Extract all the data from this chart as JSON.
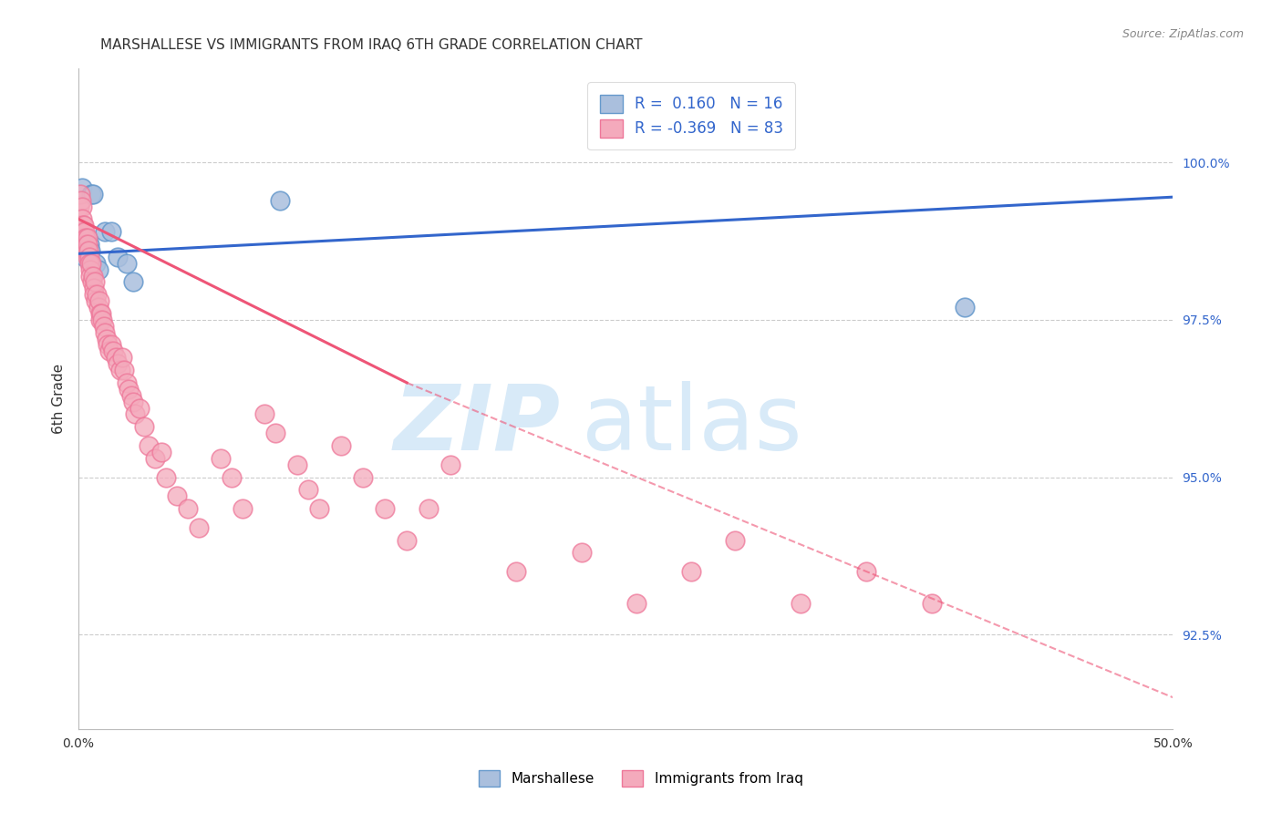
{
  "title": "MARSHALLESE VS IMMIGRANTS FROM IRAQ 6TH GRADE CORRELATION CHART",
  "source": "Source: ZipAtlas.com",
  "ylabel": "6th Grade",
  "xlim": [
    0.0,
    50.0
  ],
  "ylim": [
    91.0,
    101.5
  ],
  "y_ticks": [
    92.5,
    95.0,
    97.5,
    100.0
  ],
  "y_tick_labels": [
    "92.5%",
    "95.0%",
    "97.5%",
    "100.0%"
  ],
  "blue_R": 0.16,
  "blue_N": 16,
  "pink_R": -0.369,
  "pink_N": 83,
  "blue_color": "#AABFDD",
  "pink_color": "#F4AABC",
  "blue_edge": "#6699CC",
  "pink_edge": "#EE7799",
  "trend_blue_color": "#3366CC",
  "trend_pink_color": "#EE5577",
  "legend_label_blue": "Marshallese",
  "legend_label_pink": "Immigrants from Iraq",
  "blue_line_x0": 0.0,
  "blue_line_y0": 98.55,
  "blue_line_x1": 50.0,
  "blue_line_y1": 99.45,
  "pink_solid_x0": 0.0,
  "pink_solid_y0": 99.1,
  "pink_solid_x1": 15.0,
  "pink_solid_y1": 96.5,
  "pink_dash_x1": 50.0,
  "pink_dash_y1": 91.5,
  "blue_scatter_x": [
    0.15,
    0.25,
    0.3,
    0.5,
    0.55,
    0.6,
    0.65,
    0.8,
    0.9,
    1.2,
    1.5,
    1.8,
    2.2,
    2.5,
    9.2,
    40.5
  ],
  "blue_scatter_y": [
    99.6,
    98.8,
    98.5,
    98.7,
    98.6,
    99.5,
    99.5,
    98.4,
    98.3,
    98.9,
    98.9,
    98.5,
    98.4,
    98.1,
    99.4,
    97.7
  ],
  "pink_scatter_x": [
    0.05,
    0.1,
    0.12,
    0.15,
    0.18,
    0.2,
    0.22,
    0.25,
    0.28,
    0.3,
    0.32,
    0.35,
    0.38,
    0.4,
    0.4,
    0.42,
    0.45,
    0.48,
    0.5,
    0.52,
    0.55,
    0.6,
    0.62,
    0.65,
    0.7,
    0.72,
    0.75,
    0.8,
    0.85,
    0.9,
    0.95,
    1.0,
    1.0,
    1.05,
    1.1,
    1.15,
    1.2,
    1.3,
    1.35,
    1.4,
    1.5,
    1.6,
    1.7,
    1.8,
    1.9,
    2.0,
    2.1,
    2.2,
    2.3,
    2.4,
    2.5,
    2.6,
    2.8,
    3.0,
    3.2,
    3.5,
    3.8,
    4.0,
    4.5,
    5.0,
    5.5,
    6.5,
    7.0,
    7.5,
    8.5,
    9.0,
    10.0,
    10.5,
    11.0,
    12.0,
    13.0,
    14.0,
    15.0,
    16.0,
    17.0,
    20.0,
    23.0,
    25.5,
    28.0,
    30.0,
    33.0,
    36.0,
    39.0
  ],
  "pink_scatter_y": [
    99.3,
    99.5,
    99.4,
    99.3,
    99.1,
    99.0,
    98.9,
    99.0,
    98.8,
    98.9,
    98.8,
    98.7,
    98.6,
    98.8,
    98.5,
    98.7,
    98.6,
    98.5,
    98.4,
    98.3,
    98.2,
    98.4,
    98.1,
    98.2,
    98.0,
    97.9,
    98.1,
    97.8,
    97.9,
    97.7,
    97.8,
    97.6,
    97.5,
    97.6,
    97.5,
    97.4,
    97.3,
    97.2,
    97.1,
    97.0,
    97.1,
    97.0,
    96.9,
    96.8,
    96.7,
    96.9,
    96.7,
    96.5,
    96.4,
    96.3,
    96.2,
    96.0,
    96.1,
    95.8,
    95.5,
    95.3,
    95.4,
    95.0,
    94.7,
    94.5,
    94.2,
    95.3,
    95.0,
    94.5,
    96.0,
    95.7,
    95.2,
    94.8,
    94.5,
    95.5,
    95.0,
    94.5,
    94.0,
    94.5,
    95.2,
    93.5,
    93.8,
    93.0,
    93.5,
    94.0,
    93.0,
    93.5,
    93.0
  ]
}
